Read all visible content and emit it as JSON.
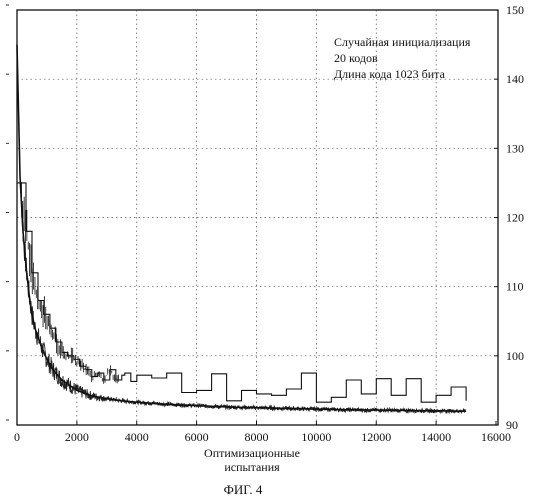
{
  "chart_data": {
    "type": "line",
    "title": "",
    "caption": "ФИГ. 4",
    "xlabel_lines": [
      "Оптимизационные",
      "испытания"
    ],
    "ylabel": "",
    "xlim": [
      0,
      15000
    ],
    "xticks": [
      "0",
      "2000",
      "4000",
      "6000",
      "8000",
      "10000",
      "12000",
      "14000",
      "16000"
    ],
    "right_ylim": [
      90,
      150
    ],
    "right_yticks": [
      "150",
      "140",
      "130",
      "120",
      "110",
      "100",
      "90"
    ],
    "left_axis_note": "left-axis tick labels are cut off at the image edge",
    "grid": true,
    "grid_style": "dotted",
    "annotation_lines": [
      "Случайная инициализация",
      "20 кодов",
      "Длина кода 1023 бита"
    ],
    "annotation_placement": "top-right",
    "series": [
      {
        "style": "dense noisy envelope",
        "x": [
          0,
          100,
          200,
          300,
          400,
          500,
          600,
          800,
          1000,
          1200,
          1500,
          2000,
          2500,
          3000,
          3500,
          4000,
          5000,
          6000,
          7000,
          8000,
          9000,
          10000,
          11000,
          12000,
          13000,
          14000,
          15000
        ],
        "y": [
          145,
          126,
          118,
          113,
          109,
          106,
          104,
          101.5,
          99.5,
          98,
          96.5,
          95,
          94.2,
          93.8,
          93.5,
          93.3,
          93,
          92.8,
          92.6,
          92.5,
          92.4,
          92.3,
          92.2,
          92.15,
          92.1,
          92.05,
          92
        ]
      },
      {
        "style": "step line",
        "x": [
          0,
          300,
          500,
          700,
          900,
          1100,
          1300,
          1500,
          1700,
          1900,
          2100,
          2300,
          2500,
          2700,
          2900,
          3100,
          3300,
          3500,
          3600,
          3800,
          4000,
          4500,
          5000,
          5500,
          6000,
          6500,
          7000,
          7500,
          8000,
          8500,
          9000,
          9500,
          10000,
          10500,
          11000,
          11500,
          12000,
          12500,
          13000,
          13500,
          14000,
          14500,
          15000
        ],
        "y": [
          125,
          118,
          112,
          108,
          106,
          104,
          102,
          100.5,
          100,
          99.5,
          98.5,
          98,
          97,
          97.5,
          96.5,
          98,
          96.5,
          97.2,
          97.5,
          96.3,
          97.2,
          96.8,
          97.5,
          94.7,
          95,
          97.4,
          93.5,
          95,
          94.5,
          94.3,
          95.2,
          97.5,
          93.3,
          94,
          96.5,
          94.5,
          96.7,
          94.3,
          96.7,
          93.3,
          94.3,
          95.5,
          93.5
        ]
      }
    ]
  }
}
